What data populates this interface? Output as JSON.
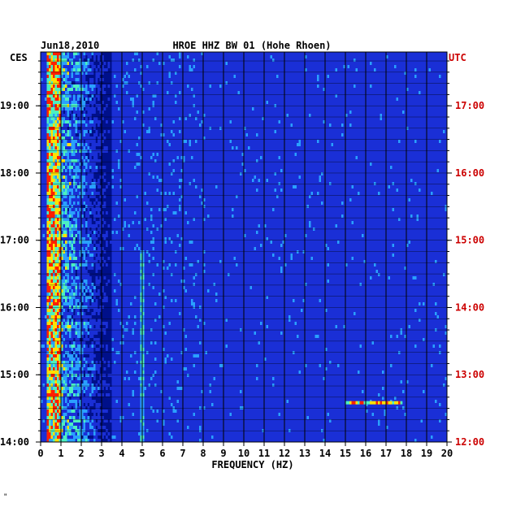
{
  "chart_data": {
    "type": "heatmap",
    "date": "Jun18,2010",
    "title": "HROE HHZ BW 01 (Hohe Rhoen)",
    "left_timezone": "CES",
    "right_timezone": "UTC",
    "xlabel": "FREQUENCY (HZ)",
    "x_ticks": [
      "0",
      "1",
      "2",
      "3",
      "4",
      "5",
      "6",
      "7",
      "8",
      "9",
      "10",
      "11",
      "12",
      "13",
      "14",
      "15",
      "16",
      "17",
      "18",
      "19",
      "20"
    ],
    "xlim": [
      0,
      20
    ],
    "left_time_ticks": [
      "19:00",
      "18:00",
      "17:00",
      "16:00",
      "15:00",
      "14:00"
    ],
    "right_time_ticks": [
      "17:00",
      "16:00",
      "15:00",
      "14:00",
      "13:00",
      "12:00"
    ],
    "time_range_ces": [
      "14:00",
      "19:48"
    ],
    "grid": true,
    "colors": {
      "background": "#00108a",
      "low": "#1a2fd6",
      "mid": "#2aa0ff",
      "high": "#4cf0c0",
      "peak": "#ffe000",
      "max": "#ff2000",
      "utc_labels": "#cc0000"
    },
    "bands": [
      {
        "name": "microseism",
        "f_min": 0.2,
        "f_max": 1.0,
        "intensity": 0.95
      },
      {
        "name": "cultural-noise",
        "f_min": 1.0,
        "f_max": 3.5,
        "intensity": 0.6
      },
      {
        "name": "narrowband-line",
        "f_min": 4.95,
        "f_max": 5.05,
        "intensity": 0.4
      },
      {
        "name": "burst-15-17hz",
        "f_min": 15.0,
        "f_max": 17.8,
        "time_ces": "14:35",
        "intensity": 0.8
      }
    ]
  },
  "footer_mark": "\""
}
